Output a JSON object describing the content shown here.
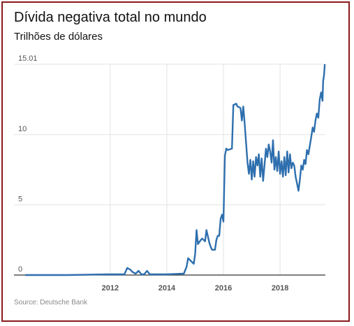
{
  "chart_data": {
    "type": "line",
    "title": "Dívida negativa total no mundo",
    "subtitle": "Trilhões de dólares",
    "source": "Source: Deutsche Bank",
    "xlabel": "",
    "ylabel": "",
    "xlim": [
      2008.6,
      2019.6
    ],
    "ylim": [
      0,
      15.01
    ],
    "y_ticks": [
      0,
      5,
      10,
      15.01
    ],
    "y_tick_labels": [
      "0",
      "5",
      "10",
      "15.01"
    ],
    "x_ticks": [
      2012,
      2014,
      2016,
      2018
    ],
    "x_tick_labels": [
      "2012",
      "2014",
      "2016",
      "2018"
    ],
    "grid": "vertical and horizontal",
    "line_color": "#2e6fae",
    "grid_color": "#e3e3e3",
    "series": [
      {
        "x": [
          2009.0,
          2010.5,
          2011.9,
          2012.5,
          2012.6,
          2012.7,
          2012.8,
          2012.9,
          2013.0,
          2013.1,
          2013.2,
          2013.3,
          2013.4,
          2013.5,
          2014.0,
          2014.6,
          2014.7,
          2014.75,
          2014.85,
          2014.95,
          2015.0,
          2015.05,
          2015.1,
          2015.2,
          2015.25,
          2015.35,
          2015.4,
          2015.5,
          2015.55,
          2015.6,
          2015.7,
          2015.75,
          2015.8,
          2015.85,
          2015.9,
          2015.95,
          2016.0,
          2016.05,
          2016.1,
          2016.15,
          2016.3,
          2016.35,
          2016.45,
          2016.5,
          2016.6,
          2016.65,
          2016.7,
          2016.75,
          2016.85,
          2016.9,
          2016.95,
          2017.0,
          2017.05,
          2017.1,
          2017.15,
          2017.2,
          2017.25,
          2017.3,
          2017.35,
          2017.4,
          2017.45,
          2017.5,
          2017.55,
          2017.6,
          2017.65,
          2017.7,
          2017.75,
          2017.8,
          2017.85,
          2017.9,
          2017.95,
          2018.0,
          2018.05,
          2018.1,
          2018.15,
          2018.2,
          2018.25,
          2018.3,
          2018.35,
          2018.4,
          2018.45,
          2018.5,
          2018.55,
          2018.6,
          2018.65,
          2018.7,
          2018.75,
          2018.8,
          2018.85,
          2018.9,
          2018.95,
          2019.0,
          2019.05,
          2019.1,
          2019.15,
          2019.2,
          2019.25,
          2019.3,
          2019.35,
          2019.4,
          2019.45,
          2019.5,
          2019.52,
          2019.55,
          2019.58
        ],
        "values": [
          0.0,
          0.0,
          0.05,
          0.05,
          0.5,
          0.4,
          0.2,
          0.1,
          0.3,
          0.05,
          0.05,
          0.3,
          0.05,
          0.05,
          0.05,
          0.1,
          0.6,
          1.2,
          1.0,
          0.8,
          1.5,
          3.2,
          2.2,
          2.5,
          2.6,
          2.4,
          3.2,
          2.3,
          2.0,
          1.8,
          1.8,
          2.5,
          2.8,
          2.8,
          4.0,
          4.3,
          3.8,
          8.5,
          9.0,
          8.9,
          9.0,
          12.1,
          12.2,
          12.0,
          11.9,
          11.0,
          12.0,
          10.8,
          8.0,
          7.2,
          8.2,
          6.8,
          8.1,
          7.0,
          8.4,
          7.8,
          8.6,
          7.0,
          8.3,
          6.7,
          7.8,
          9.0,
          8.4,
          9.3,
          8.8,
          8.0,
          9.6,
          7.5,
          8.4,
          7.4,
          8.8,
          7.2,
          8.1,
          7.0,
          8.4,
          7.1,
          8.8,
          7.3,
          8.6,
          7.6,
          8.0,
          7.8,
          7.0,
          6.5,
          6.0,
          6.8,
          7.8,
          7.5,
          8.2,
          7.9,
          8.9,
          8.6,
          9.2,
          9.8,
          10.5,
          10.2,
          11.0,
          11.5,
          11.2,
          12.5,
          13.0,
          12.4,
          13.8,
          14.2,
          15.01
        ]
      }
    ]
  }
}
